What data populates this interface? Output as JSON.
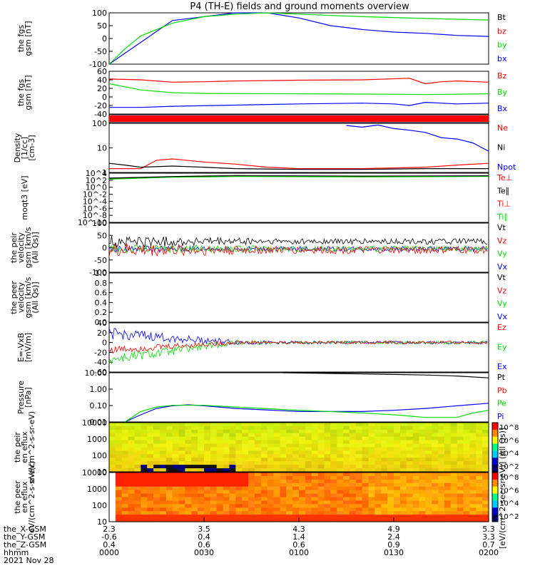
{
  "title": "P4 (TH-E) fields and ground moments overview",
  "colors": {
    "black": "#000000",
    "red": "#ff0000",
    "green": "#00dd00",
    "blue": "#0000ff"
  },
  "x_axis": {
    "rows": [
      {
        "label": "the_X-GSM",
        "values": [
          "2.3",
          "3.5",
          "4.3",
          "4.9",
          "5.3"
        ]
      },
      {
        "label": "the_Y-GSM",
        "values": [
          "-0.6",
          "0.4",
          "1.4",
          "2.4",
          "3.3"
        ]
      },
      {
        "label": "the_Z-GSM",
        "values": [
          "0.4",
          "0.6",
          "0.6",
          "0.9",
          "0.7"
        ]
      },
      {
        "label": "hhmm",
        "values": [
          "0000",
          "0030",
          "0100",
          "0130",
          "0200"
        ]
      }
    ],
    "date": "2021 Nov 28",
    "minutes": [
      0,
      30,
      60,
      90,
      120
    ]
  },
  "colorbar_label": "[eV/(cm^2-sec-sr-eV)] (All Qs)]",
  "chart_data": [
    {
      "type": "line",
      "ylabel": "the fgs gsm [nT]",
      "ylim": [
        -100,
        100
      ],
      "yticks": [
        "100",
        "50",
        "0",
        "-50",
        "-100"
      ],
      "legend": [
        {
          "name": "Bt",
          "color": "#000000"
        },
        {
          "name": "bz",
          "color": "#ff0000"
        },
        {
          "name": "by",
          "color": "#00dd00"
        },
        {
          "name": "bx",
          "color": "#0000ff"
        }
      ],
      "series": [
        {
          "name": "bx",
          "color": "#0000ff",
          "x": [
            0,
            20,
            40,
            50,
            60,
            70,
            80,
            90,
            100,
            110,
            120
          ],
          "y": [
            -100,
            70,
            100,
            105,
            80,
            50,
            35,
            25,
            20,
            12,
            8
          ]
        },
        {
          "name": "by",
          "color": "#00dd00",
          "x": [
            0,
            5,
            10,
            20,
            30,
            40,
            50,
            60,
            80,
            100,
            120
          ],
          "y": [
            -100,
            -40,
            10,
            60,
            85,
            95,
            100,
            95,
            85,
            78,
            72
          ]
        }
      ]
    },
    {
      "type": "line",
      "ylabel": "the fgs gsm [nT]",
      "ylim": [
        -50,
        60
      ],
      "yticks": [
        "60",
        "40",
        "20",
        "0",
        "-20",
        "-40"
      ],
      "legend": [
        {
          "name": "Bz",
          "color": "#ff0000"
        },
        {
          "name": "By",
          "color": "#00dd00"
        },
        {
          "name": "Bx",
          "color": "#0000ff"
        }
      ],
      "series": [
        {
          "name": "Bz",
          "color": "#ff0000",
          "x": [
            0,
            10,
            20,
            30,
            40,
            60,
            80,
            95,
            100,
            105,
            110,
            120
          ],
          "y": [
            40,
            38,
            32,
            33,
            35,
            37,
            38,
            42,
            28,
            33,
            35,
            32
          ]
        },
        {
          "name": "By",
          "color": "#00dd00",
          "x": [
            0,
            5,
            10,
            20,
            30,
            60,
            90,
            100,
            120
          ],
          "y": [
            28,
            20,
            12,
            5,
            3,
            2,
            1,
            0,
            2
          ]
        },
        {
          "name": "Bx",
          "color": "#0000ff",
          "x": [
            0,
            10,
            20,
            40,
            60,
            80,
            90,
            95,
            100,
            110,
            120
          ],
          "y": [
            -33,
            -33,
            -30,
            -27,
            -24,
            -22,
            -24,
            -28,
            -20,
            -24,
            -22
          ]
        }
      ]
    },
    {
      "type": "band",
      "ylabel": "",
      "color": "#ff0000"
    },
    {
      "type": "line",
      "ylabel": "Density [1/cc] [cm-3]",
      "yscale": "log",
      "ylim": [
        0.3,
        200
      ],
      "yticks": [
        "100",
        "10",
        "1"
      ],
      "legend": [
        {
          "name": "Ne",
          "color": "#ff0000"
        },
        {
          "name": "Ni",
          "color": "#000000"
        },
        {
          "name": "Npot",
          "color": "#0000ff"
        }
      ],
      "series": [
        {
          "name": "Npot",
          "color": "#0000ff",
          "x": [
            75,
            80,
            85,
            90,
            95,
            100,
            105,
            110,
            115,
            120
          ],
          "y": [
            150,
            120,
            160,
            100,
            80,
            60,
            30,
            25,
            15,
            5
          ]
        },
        {
          "name": "Ne",
          "color": "#ff0000",
          "x": [
            0,
            10,
            15,
            20,
            30,
            40,
            50,
            60,
            80,
            100,
            110,
            120
          ],
          "y": [
            0.5,
            0.5,
            1.5,
            1.8,
            1.2,
            0.9,
            0.6,
            0.5,
            0.5,
            0.6,
            0.8,
            1.0
          ]
        },
        {
          "name": "Ni",
          "color": "#000000",
          "x": [
            0,
            5,
            10,
            20,
            30,
            40,
            60,
            80,
            100,
            120
          ],
          "y": [
            1.0,
            0.8,
            0.6,
            0.7,
            0.6,
            0.5,
            0.45,
            0.45,
            0.5,
            0.5
          ]
        }
      ]
    },
    {
      "type": "line",
      "ylabel": "moqt3 [eV]",
      "yscale": "log",
      "yticks": [
        "10^4",
        "10^2",
        "10^0",
        "10^-2",
        "10^-4",
        "10^-6",
        "10^-8",
        "10^-10"
      ],
      "legend": [
        {
          "name": "Te⊥",
          "color": "#ff0000"
        },
        {
          "name": "Te∥",
          "color": "#000000"
        },
        {
          "name": "Ti⊥",
          "color": "#ff0000"
        },
        {
          "name": "Ti∥",
          "color": "#00dd00"
        }
      ],
      "series": [
        {
          "name": "Te⊥",
          "color": "#ff0000",
          "x": [
            0,
            20,
            40,
            60,
            80,
            100,
            120
          ],
          "y": [
            300,
            900,
            1500,
            1400,
            1200,
            1300,
            1500
          ]
        },
        {
          "name": "Ti∥",
          "color": "#00dd00",
          "x": [
            0,
            20,
            40,
            60,
            80,
            100,
            120
          ],
          "y": [
            200,
            700,
            1100,
            1000,
            900,
            1000,
            1200
          ]
        },
        {
          "name": "Te∥",
          "color": "#000000",
          "x": [
            0,
            20,
            40,
            60,
            80,
            100,
            120
          ],
          "y": [
            400,
            1100,
            2000,
            1800,
            1500,
            1700,
            1900
          ]
        }
      ]
    },
    {
      "type": "line",
      "ylabel": "the peir velocity gsm [km/s (All Qs)]",
      "ylim": [
        -100,
        100
      ],
      "yticks": [
        "100",
        "50",
        "0",
        "-50",
        "-100"
      ],
      "legend": [
        {
          "name": "Vt",
          "color": "#000000"
        },
        {
          "name": "Vz",
          "color": "#ff0000"
        },
        {
          "name": "Vy",
          "color": "#00dd00"
        },
        {
          "name": "Vx",
          "color": "#0000ff"
        }
      ],
      "noise": [
        {
          "name": "Vx",
          "color": "#0000ff",
          "mean": -5,
          "amp": 15,
          "ampEnd": 10
        },
        {
          "name": "Vy",
          "color": "#00dd00",
          "mean": -5,
          "amp": 20,
          "ampEnd": 12
        },
        {
          "name": "Vz",
          "color": "#ff0000",
          "mean": -10,
          "amp": 30,
          "ampEnd": 15
        },
        {
          "name": "Vt",
          "color": "#000000",
          "mean": 25,
          "amp": 25,
          "ampEnd": 12
        }
      ]
    },
    {
      "type": "line",
      "ylabel": "the peer velocity gsm [km/s (All Qs)]",
      "ylim": [
        0,
        1
      ],
      "yticks": [
        "1.0",
        "0.8",
        "0.6",
        "0.4",
        "0.2",
        "0.0"
      ],
      "legend": [
        {
          "name": "Vt",
          "color": "#000000"
        },
        {
          "name": "Vz",
          "color": "#ff0000"
        },
        {
          "name": "Vy",
          "color": "#00dd00"
        },
        {
          "name": "Vx",
          "color": "#0000ff"
        }
      ],
      "series": []
    },
    {
      "type": "line",
      "ylabel": "E=-VxB [mV/m]",
      "ylim": [
        -60,
        40
      ],
      "yticks": [
        "40",
        "20",
        "0",
        "-20",
        "-40",
        "-60"
      ],
      "legend": [
        {
          "name": "Ez",
          "color": "#ff0000"
        },
        {
          "name": "Ey",
          "color": "#00dd00"
        },
        {
          "name": "Ex",
          "color": "#0000ff"
        }
      ],
      "noise": [
        {
          "name": "Ex",
          "color": "#0000ff",
          "mean": 18,
          "meanEnd": 0,
          "amp": 12,
          "ampEnd": 3
        },
        {
          "name": "Ey",
          "color": "#00dd00",
          "mean": -35,
          "meanEnd": 0,
          "amp": 12,
          "ampEnd": 3
        },
        {
          "name": "Ez",
          "color": "#ff0000",
          "mean": -15,
          "meanEnd": 0,
          "amp": 8,
          "ampEnd": 3
        }
      ]
    },
    {
      "type": "line",
      "ylabel": "Pressure [nPa]",
      "yscale": "log",
      "ylim": [
        0.01,
        20
      ],
      "yticks": [
        "10.00",
        "1.00",
        "0.10",
        "0.01"
      ],
      "legend": [
        {
          "name": "Pt",
          "color": "#000000"
        },
        {
          "name": "Pb",
          "color": "#ff0000"
        },
        {
          "name": "Pe",
          "color": "#00dd00"
        },
        {
          "name": "Pi",
          "color": "#0000ff"
        }
      ],
      "series": [
        {
          "name": "Pt",
          "color": "#000000",
          "x": [
            55,
            70,
            85,
            100,
            110,
            120
          ],
          "y": [
            20,
            18,
            16,
            14,
            12,
            9
          ]
        },
        {
          "name": "Pi",
          "color": "#0000ff",
          "x": [
            5,
            10,
            15,
            20,
            25,
            30,
            40,
            60,
            80,
            90,
            100,
            110,
            120
          ],
          "y": [
            0.01,
            0.03,
            0.08,
            0.12,
            0.14,
            0.12,
            0.08,
            0.05,
            0.05,
            0.06,
            0.08,
            0.12,
            0.18
          ]
        },
        {
          "name": "Pe",
          "color": "#00dd00",
          "x": [
            5,
            10,
            15,
            20,
            30,
            40,
            60,
            80,
            90,
            100,
            110,
            115,
            120
          ],
          "y": [
            0.01,
            0.05,
            0.1,
            0.13,
            0.13,
            0.1,
            0.06,
            0.04,
            0.03,
            0.02,
            0.02,
            0.04,
            0.06
          ]
        }
      ]
    },
    {
      "type": "heatmap",
      "ylabel": "the peir en eflux eV/(cm^2-s-sr-eV)",
      "yticks": [
        "10000",
        "1000",
        "100",
        "10"
      ],
      "colorbar_ticks": [
        "10^8",
        "10^6",
        "10^4",
        "10^2"
      ],
      "scheme": "ion"
    },
    {
      "type": "heatmap",
      "ylabel": "the peer en eflux eV/(cm^2-s-sr-eV)",
      "yticks": [
        "10000",
        "1000",
        "100",
        "10"
      ],
      "colorbar_ticks": [
        "10^8",
        "10^6",
        "10^4",
        "10^2"
      ],
      "scheme": "electron"
    }
  ]
}
